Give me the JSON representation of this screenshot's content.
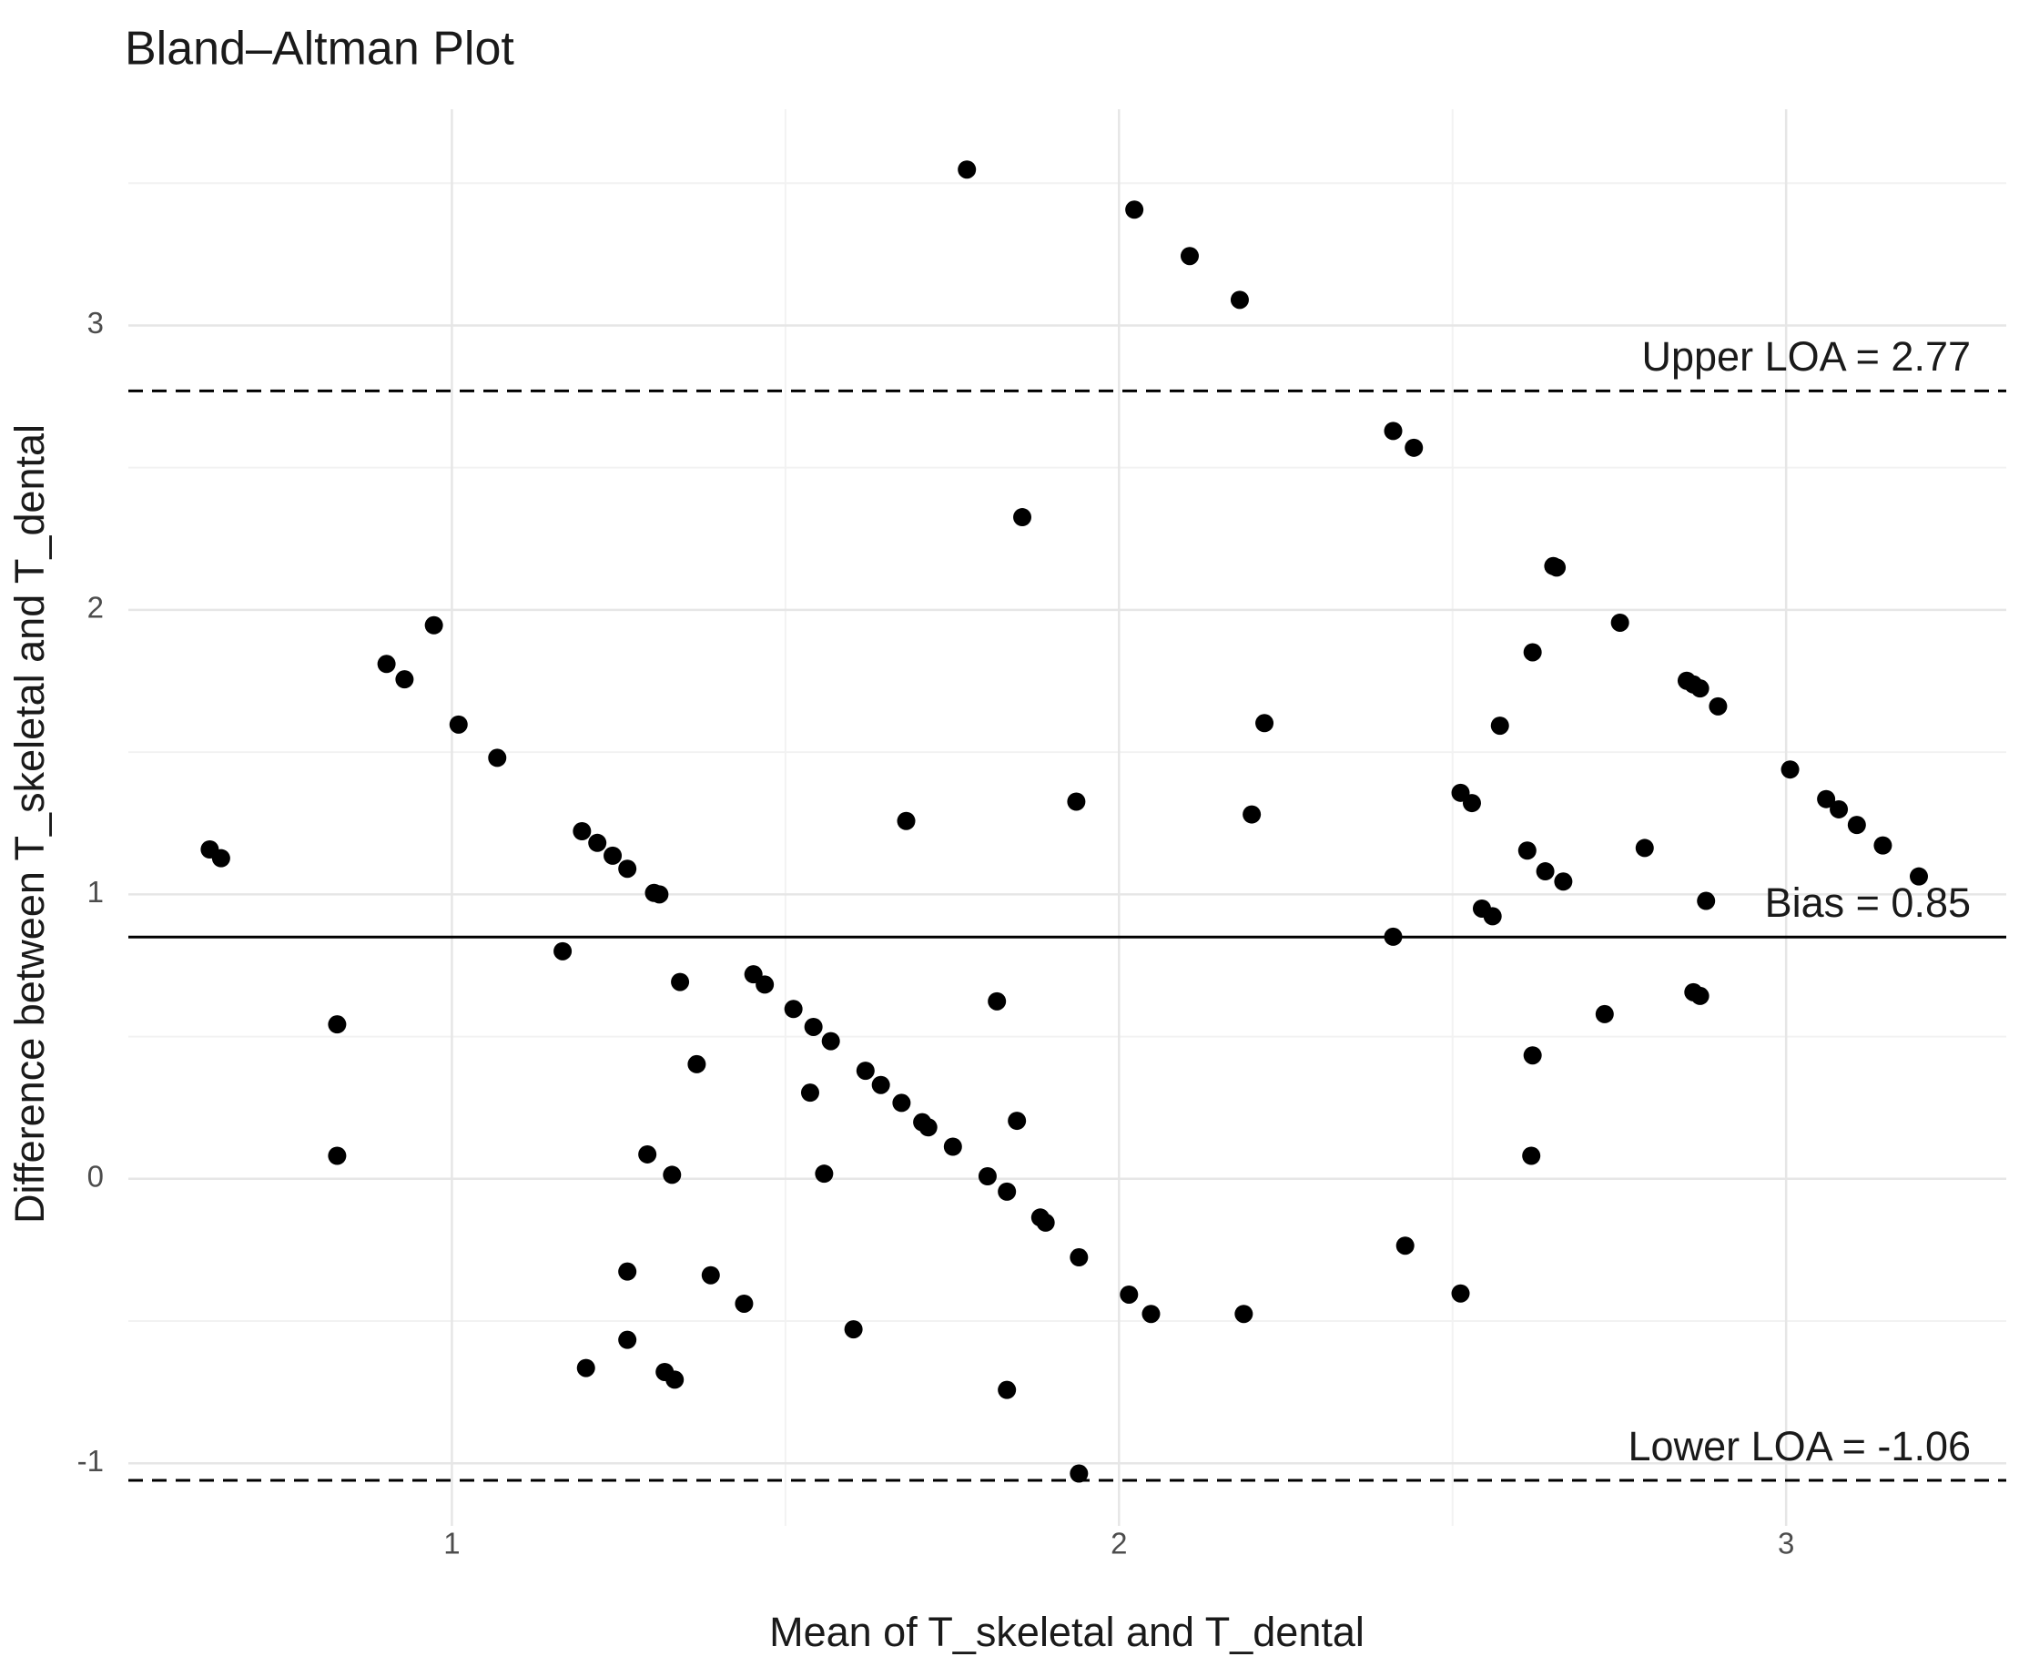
{
  "chart_data": {
    "type": "scatter",
    "title": "Bland–Altman Plot",
    "x_label": "Mean of T_skeletal and T_dental",
    "y_label": "Difference between T_skeletal and T_dental",
    "xlim": [
      0.515,
      3.33
    ],
    "ylim": [
      -1.22,
      3.76
    ],
    "xticks": [
      1,
      2,
      3
    ],
    "yticks": [
      -1,
      0,
      1,
      2,
      3
    ],
    "x_minor_ticks": [
      1.5,
      2.5
    ],
    "y_minor_ticks": [
      -0.5,
      0.5,
      1.5,
      2.5,
      3.5
    ],
    "grid": true,
    "color": "#000000",
    "hlines": [
      {
        "value": 2.77,
        "label": "Upper LOA = 2.77",
        "style": "dashed"
      },
      {
        "value": 0.85,
        "label": "Bias = 0.85",
        "style": "solid"
      },
      {
        "value": -1.06,
        "label": "Lower LOA = -1.06",
        "style": "dashed"
      }
    ],
    "x": [
      0.637,
      0.654,
      0.828,
      0.828,
      0.902,
      0.929,
      0.973,
      1.01,
      1.068,
      1.166,
      1.195,
      1.218,
      1.241,
      1.263,
      1.303,
      1.311,
      1.201,
      1.263,
      1.263,
      1.293,
      1.319,
      1.334,
      1.33,
      1.342,
      1.367,
      1.388,
      1.438,
      1.452,
      1.469,
      1.512,
      1.542,
      1.568,
      1.537,
      1.558,
      1.602,
      1.62,
      1.643,
      1.674,
      1.705,
      1.714,
      1.751,
      1.681,
      1.772,
      1.803,
      1.817,
      1.832,
      1.832,
      1.847,
      1.855,
      1.882,
      1.89,
      1.936,
      1.94,
      1.94,
      2.015,
      2.023,
      2.048,
      2.106,
      2.181,
      2.187,
      2.199,
      2.218,
      2.411,
      2.442,
      2.411,
      2.429,
      2.512,
      2.529,
      2.512,
      2.544,
      2.56,
      2.571,
      2.612,
      2.62,
      2.62,
      2.618,
      2.639,
      2.651,
      2.656,
      2.666,
      2.728,
      2.751,
      2.788,
      2.851,
      2.861,
      2.871,
      2.898,
      2.861,
      2.871,
      2.88,
      3.006,
      3.06,
      3.079,
      3.106,
      3.145,
      3.199
    ],
    "values": [
      1.158,
      1.127,
      0.543,
      0.081,
      1.81,
      1.756,
      1.946,
      1.597,
      1.48,
      0.8,
      1.222,
      1.181,
      1.136,
      1.09,
      1.005,
      1.0,
      -0.665,
      -0.326,
      -0.566,
      0.086,
      -0.679,
      -0.706,
      0.014,
      0.692,
      0.403,
      -0.339,
      -0.439,
      0.719,
      0.683,
      0.597,
      0.534,
      0.484,
      0.303,
      0.018,
      -0.529,
      0.38,
      0.33,
      0.267,
      0.199,
      0.181,
      0.113,
      1.258,
      3.548,
      0.009,
      0.624,
      -0.045,
      -0.742,
      0.204,
      2.326,
      -0.136,
      -0.154,
      1.326,
      -0.276,
      -1.036,
      -0.407,
      3.407,
      -0.475,
      3.244,
      3.09,
      -0.475,
      1.281,
      1.602,
      2.629,
      2.57,
      0.851,
      -0.235,
      1.357,
      1.321,
      -0.403,
      0.95,
      0.923,
      1.593,
      1.154,
      1.851,
      0.434,
      0.081,
      1.081,
      2.154,
      2.149,
      1.045,
      0.579,
      1.955,
      1.163,
      1.751,
      1.738,
      1.724,
      1.661,
      0.656,
      0.643,
      0.977,
      1.439,
      1.335,
      1.299,
      1.244,
      1.172,
      1.063
    ]
  }
}
